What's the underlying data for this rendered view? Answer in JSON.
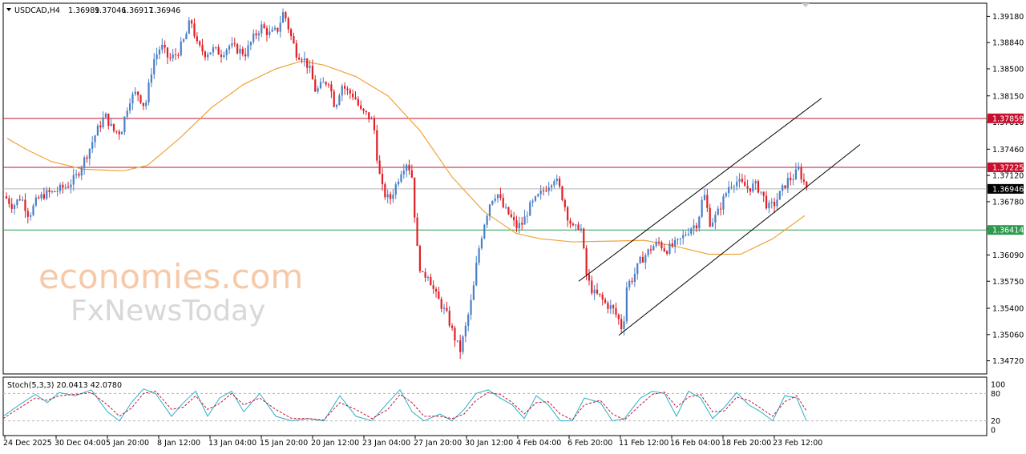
{
  "header": {
    "symbol": "USDCAD,H4",
    "open": "1.36989",
    "high": "1.37046",
    "low": "1.36917",
    "close": "1.36946"
  },
  "watermark": {
    "line1": "economies.com",
    "line2": "FxNewsToday"
  },
  "colors": {
    "bull": "#4a7fc8",
    "bear": "#e01f25",
    "ma": "#f0a33a",
    "resistance_high": "#c8102e",
    "resistance_low": "#c8102e",
    "support": "#2e9a4d",
    "current_price": "#000000",
    "stoch_main": "#2ab0c8",
    "stoch_signal": "#c8102e"
  },
  "chart_data": [
    {
      "type": "candlestick",
      "title": "USDCAD,H4",
      "ylim": [
        1.3455,
        1.3935
      ],
      "y_ticks": [
        "1.39180",
        "1.38840",
        "1.38500",
        "1.38150",
        "1.37810",
        "1.37460",
        "1.37120",
        "1.36780",
        "1.36430",
        "1.36090",
        "1.35750",
        "1.35400",
        "1.35060",
        "1.34720"
      ],
      "x_labels": [
        "24 Dec 2025",
        "30 Dec 04:00",
        "5 Jan 20:00",
        "8 Jan 12:00",
        "13 Jan 04:00",
        "15 Jan 20:00",
        "20 Jan 12:00",
        "23 Jan 04:00",
        "27 Jan 20:00",
        "30 Jan 12:00",
        "4 Feb 04:00",
        "6 Feb 20:00",
        "11 Feb 12:00",
        "16 Feb 04:00",
        "18 Feb 20:00",
        "23 Feb 12:00"
      ],
      "price_path": [
        [
          0,
          1.3685
        ],
        [
          10,
          1.3672
        ],
        [
          20,
          1.3685
        ],
        [
          30,
          1.366
        ],
        [
          40,
          1.368
        ],
        [
          50,
          1.3688
        ],
        [
          60,
          1.369
        ],
        [
          70,
          1.3695
        ],
        [
          80,
          1.37
        ],
        [
          90,
          1.3712
        ],
        [
          98,
          1.373
        ],
        [
          105,
          1.3745
        ],
        [
          115,
          1.377
        ],
        [
          125,
          1.379
        ],
        [
          135,
          1.377
        ],
        [
          145,
          1.3768
        ],
        [
          155,
          1.381
        ],
        [
          165,
          1.382
        ],
        [
          175,
          1.38
        ],
        [
          185,
          1.386
        ],
        [
          195,
          1.388
        ],
        [
          205,
          1.3862
        ],
        [
          215,
          1.387
        ],
        [
          225,
          1.389
        ],
        [
          232,
          1.3915
        ],
        [
          240,
          1.388
        ],
        [
          250,
          1.387
        ],
        [
          260,
          1.3875
        ],
        [
          270,
          1.387
        ],
        [
          280,
          1.388
        ],
        [
          290,
          1.3875
        ],
        [
          300,
          1.387
        ],
        [
          310,
          1.389
        ],
        [
          320,
          1.3905
        ],
        [
          330,
          1.3895
        ],
        [
          340,
          1.39
        ],
        [
          348,
          1.3925
        ],
        [
          356,
          1.3895
        ],
        [
          364,
          1.387
        ],
        [
          372,
          1.3865
        ],
        [
          380,
          1.385
        ],
        [
          388,
          1.382
        ],
        [
          396,
          1.383
        ],
        [
          404,
          1.3835
        ],
        [
          412,
          1.38
        ],
        [
          420,
          1.383
        ],
        [
          428,
          1.382
        ],
        [
          436,
          1.3815
        ],
        [
          444,
          1.3795
        ],
        [
          452,
          1.379
        ],
        [
          460,
          1.378
        ],
        [
          466,
          1.372
        ],
        [
          472,
          1.369
        ],
        [
          480,
          1.368
        ],
        [
          488,
          1.37
        ],
        [
          495,
          1.372
        ],
        [
          502,
          1.373
        ],
        [
          508,
          1.371
        ],
        [
          514,
          1.362
        ],
        [
          520,
          1.358
        ],
        [
          528,
          1.3585
        ],
        [
          536,
          1.356
        ],
        [
          544,
          1.3545
        ],
        [
          552,
          1.353
        ],
        [
          560,
          1.3505
        ],
        [
          568,
          1.3485
        ],
        [
          576,
          1.352
        ],
        [
          584,
          1.356
        ],
        [
          590,
          1.361
        ],
        [
          598,
          1.365
        ],
        [
          606,
          1.368
        ],
        [
          614,
          1.369
        ],
        [
          622,
          1.367
        ],
        [
          630,
          1.366
        ],
        [
          638,
          1.3645
        ],
        [
          646,
          1.365
        ],
        [
          654,
          1.367
        ],
        [
          662,
          1.368
        ],
        [
          670,
          1.369
        ],
        [
          678,
          1.37
        ],
        [
          686,
          1.371
        ],
        [
          694,
          1.369
        ],
        [
          702,
          1.366
        ],
        [
          710,
          1.364
        ],
        [
          718,
          1.365
        ],
        [
          726,
          1.358
        ],
        [
          734,
          1.356
        ],
        [
          742,
          1.3555
        ],
        [
          750,
          1.3545
        ],
        [
          758,
          1.354
        ],
        [
          766,
          1.3525
        ],
        [
          771,
          1.351
        ],
        [
          776,
          1.357
        ],
        [
          784,
          1.358
        ],
        [
          792,
          1.36
        ],
        [
          800,
          1.361
        ],
        [
          808,
          1.362
        ],
        [
          816,
          1.3625
        ],
        [
          824,
          1.3615
        ],
        [
          832,
          1.362
        ],
        [
          840,
          1.3625
        ],
        [
          848,
          1.3635
        ],
        [
          856,
          1.3645
        ],
        [
          864,
          1.365
        ],
        [
          872,
          1.369
        ],
        [
          880,
          1.365
        ],
        [
          888,
          1.366
        ],
        [
          896,
          1.368
        ],
        [
          904,
          1.37
        ],
        [
          912,
          1.3705
        ],
        [
          920,
          1.37
        ],
        [
          928,
          1.3695
        ],
        [
          936,
          1.37
        ],
        [
          944,
          1.369
        ],
        [
          952,
          1.367
        ],
        [
          960,
          1.3675
        ],
        [
          968,
          1.369
        ],
        [
          976,
          1.3705
        ],
        [
          984,
          1.371
        ],
        [
          990,
          1.372
        ],
        [
          996,
          1.3705
        ],
        [
          1002,
          1.3695
        ]
      ],
      "moving_average": [
        [
          5,
          1.376
        ],
        [
          30,
          1.3745
        ],
        [
          60,
          1.373
        ],
        [
          100,
          1.372
        ],
        [
          150,
          1.3718
        ],
        [
          180,
          1.3725
        ],
        [
          220,
          1.376
        ],
        [
          260,
          1.38
        ],
        [
          300,
          1.383
        ],
        [
          340,
          1.385
        ],
        [
          372,
          1.386
        ],
        [
          400,
          1.3855
        ],
        [
          440,
          1.384
        ],
        [
          480,
          1.3815
        ],
        [
          520,
          1.377
        ],
        [
          560,
          1.371
        ],
        [
          600,
          1.3665
        ],
        [
          640,
          1.3637
        ],
        [
          670,
          1.363
        ],
        [
          710,
          1.3626
        ],
        [
          760,
          1.3627
        ],
        [
          800,
          1.3628
        ],
        [
          840,
          1.362
        ],
        [
          880,
          1.361
        ],
        [
          920,
          1.361
        ],
        [
          960,
          1.363
        ],
        [
          1000,
          1.366
        ]
      ],
      "horizontal_levels": [
        {
          "label": "1.37859",
          "value": 1.37859,
          "role": "resistance_high"
        },
        {
          "label": "1.37225",
          "value": 1.37225,
          "role": "resistance_low"
        },
        {
          "label": "1.36946",
          "value": 1.36946,
          "role": "current_price"
        },
        {
          "label": "1.36414",
          "value": 1.36414,
          "role": "support"
        }
      ],
      "channel": {
        "upper": [
          [
            722,
            1.3575
          ],
          [
            1025,
            1.3812
          ]
        ],
        "lower": [
          [
            772,
            1.3505
          ],
          [
            1073,
            1.3752
          ]
        ]
      }
    },
    {
      "type": "line",
      "title": "Stoch(5,3,3) 20.0413 42.0780",
      "ylim": [
        0,
        100
      ],
      "y_ticks": [
        "100",
        "80",
        "20",
        "0"
      ],
      "levels": [
        80,
        20
      ],
      "series": [
        {
          "name": "main",
          "wave": [
            [
              0,
              30
            ],
            [
              20,
              55
            ],
            [
              40,
              78
            ],
            [
              55,
              60
            ],
            [
              70,
              82
            ],
            [
              90,
              75
            ],
            [
              110,
              88
            ],
            [
              130,
              40
            ],
            [
              145,
              20
            ],
            [
              160,
              60
            ],
            [
              175,
              90
            ],
            [
              190,
              80
            ],
            [
              210,
              30
            ],
            [
              225,
              60
            ],
            [
              240,
              85
            ],
            [
              255,
              30
            ],
            [
              270,
              70
            ],
            [
              285,
              85
            ],
            [
              300,
              40
            ],
            [
              320,
              80
            ],
            [
              340,
              30
            ],
            [
              360,
              20
            ],
            [
              380,
              25
            ],
            [
              400,
              20
            ],
            [
              420,
              75
            ],
            [
              440,
              30
            ],
            [
              460,
              20
            ],
            [
              480,
              60
            ],
            [
              495,
              88
            ],
            [
              510,
              40
            ],
            [
              525,
              20
            ],
            [
              545,
              35
            ],
            [
              560,
              20
            ],
            [
              575,
              45
            ],
            [
              590,
              80
            ],
            [
              605,
              88
            ],
            [
              620,
              70
            ],
            [
              635,
              55
            ],
            [
              650,
              25
            ],
            [
              665,
              75
            ],
            [
              680,
              55
            ],
            [
              695,
              20
            ],
            [
              710,
              20
            ],
            [
              725,
              70
            ],
            [
              745,
              60
            ],
            [
              760,
              20
            ],
            [
              775,
              25
            ],
            [
              795,
              70
            ],
            [
              810,
              85
            ],
            [
              825,
              80
            ],
            [
              840,
              30
            ],
            [
              855,
              85
            ],
            [
              870,
              70
            ],
            [
              885,
              25
            ],
            [
              900,
              50
            ],
            [
              915,
              82
            ],
            [
              930,
              55
            ],
            [
              945,
              40
            ],
            [
              960,
              20
            ],
            [
              975,
              75
            ],
            [
              990,
              70
            ],
            [
              1002,
              20
            ]
          ]
        },
        {
          "name": "signal",
          "wave": [
            [
              0,
              25
            ],
            [
              20,
              48
            ],
            [
              40,
              70
            ],
            [
              55,
              65
            ],
            [
              70,
              75
            ],
            [
              90,
              78
            ],
            [
              110,
              82
            ],
            [
              130,
              55
            ],
            [
              145,
              30
            ],
            [
              160,
              48
            ],
            [
              175,
              80
            ],
            [
              190,
              85
            ],
            [
              210,
              45
            ],
            [
              225,
              50
            ],
            [
              240,
              75
            ],
            [
              255,
              45
            ],
            [
              270,
              58
            ],
            [
              285,
              80
            ],
            [
              300,
              55
            ],
            [
              320,
              70
            ],
            [
              340,
              45
            ],
            [
              360,
              25
            ],
            [
              380,
              25
            ],
            [
              400,
              22
            ],
            [
              420,
              60
            ],
            [
              440,
              45
            ],
            [
              460,
              25
            ],
            [
              480,
              45
            ],
            [
              495,
              78
            ],
            [
              510,
              60
            ],
            [
              525,
              30
            ],
            [
              545,
              30
            ],
            [
              560,
              25
            ],
            [
              575,
              35
            ],
            [
              590,
              65
            ],
            [
              605,
              82
            ],
            [
              620,
              78
            ],
            [
              635,
              60
            ],
            [
              650,
              35
            ],
            [
              665,
              60
            ],
            [
              680,
              62
            ],
            [
              695,
              35
            ],
            [
              710,
              22
            ],
            [
              725,
              55
            ],
            [
              745,
              65
            ],
            [
              760,
              35
            ],
            [
              775,
              22
            ],
            [
              795,
              55
            ],
            [
              810,
              78
            ],
            [
              825,
              83
            ],
            [
              840,
              50
            ],
            [
              855,
              72
            ],
            [
              870,
              78
            ],
            [
              885,
              40
            ],
            [
              900,
              42
            ],
            [
              915,
              72
            ],
            [
              930,
              65
            ],
            [
              945,
              48
            ],
            [
              960,
              30
            ],
            [
              975,
              62
            ],
            [
              990,
              75
            ],
            [
              1002,
              42
            ]
          ]
        }
      ]
    }
  ]
}
